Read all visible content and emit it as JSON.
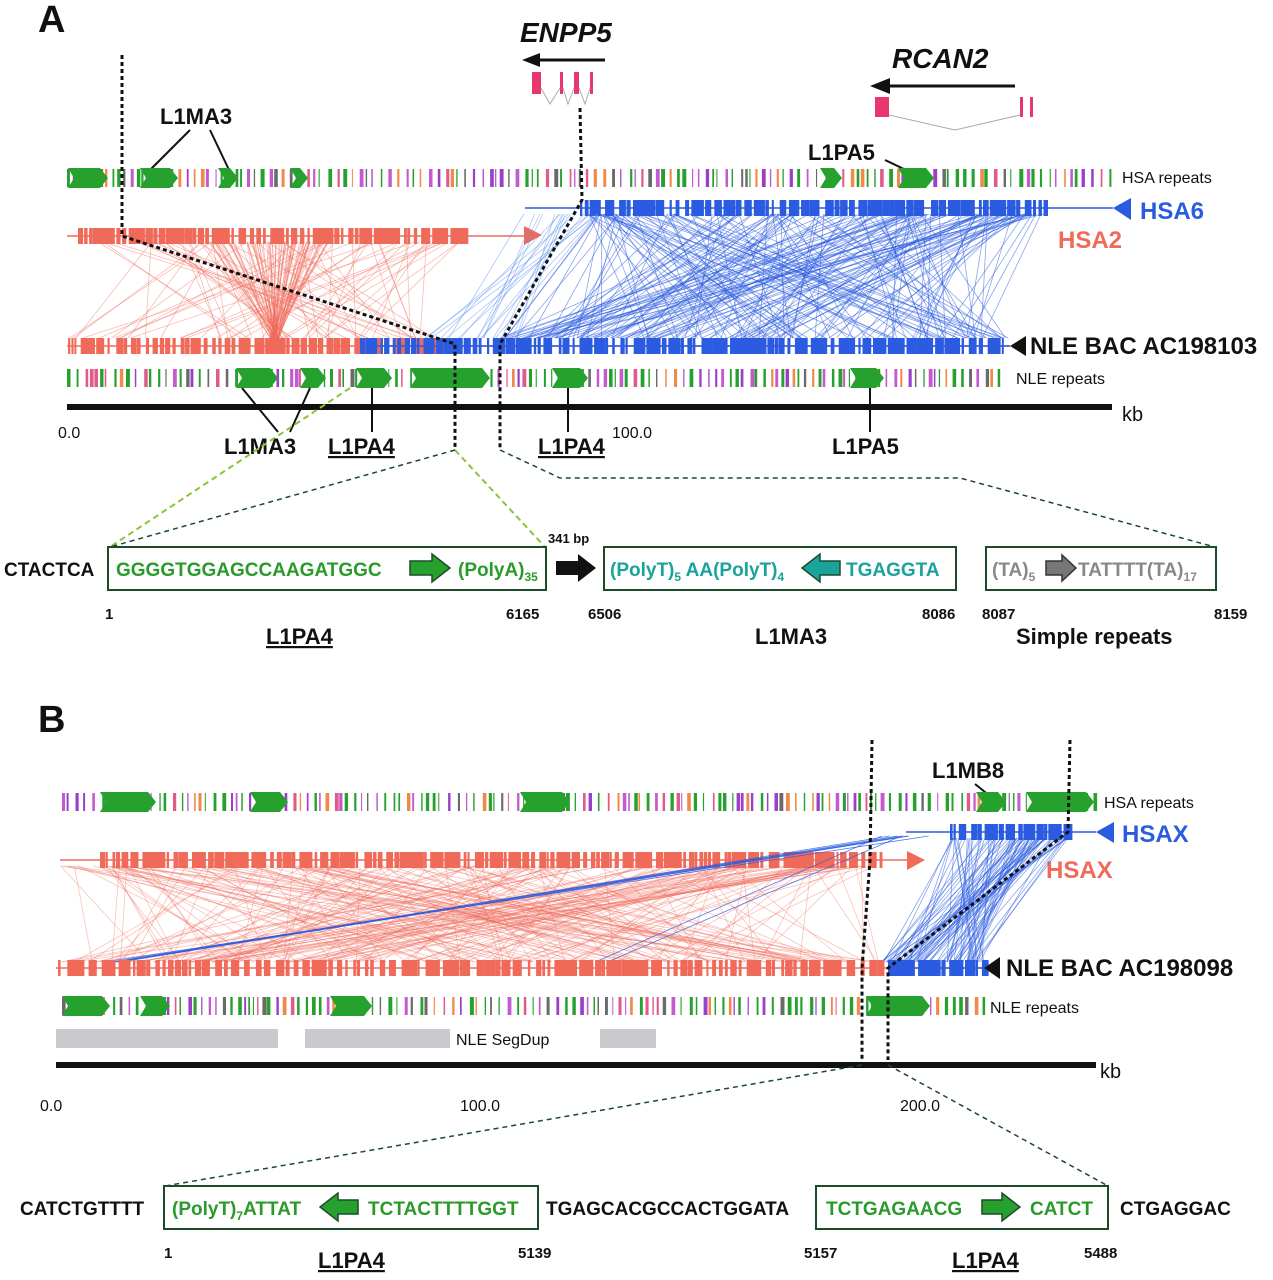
{
  "colors": {
    "human_blue": "#2a5be0",
    "human_red": "#f06a5a",
    "repeat_green": "#27a12e",
    "seq_green": "#2a9a2a",
    "seq_teal": "#1aa39a",
    "seq_gray": "#888888",
    "segdup_gray": "#c9cacd",
    "gene_pink": "#e9366f"
  },
  "panelA": {
    "label": "A",
    "genes": [
      "ENPP5",
      "RCAN2"
    ],
    "repeat_labels_top": [
      "L1MA3",
      "L1PA5"
    ],
    "tracks": {
      "hsa_repeats": "HSA repeats",
      "hsa6": "HSA6",
      "hsa2": "HSA2",
      "bac": "NLE BAC AC198103",
      "nle_repeats": "NLE repeats"
    },
    "axis": {
      "unit": "kb",
      "ticks": [
        "0.0",
        "100.0"
      ]
    },
    "repeat_labels_bottom": [
      "L1MA3",
      "L1PA4",
      "L1PA4",
      "L1PA5"
    ],
    "detail": {
      "left_flank": "CTACTCA",
      "box1": {
        "left": "GGGGTGGAGCCAAGATGGC",
        "right": "(PolyA)",
        "right_sub": "35",
        "start": "1",
        "end": "6165",
        "name": "L1PA4"
      },
      "gap": "341 bp",
      "box2": {
        "a": "(PolyT)",
        "a_sub": "5",
        "b": " AA(PolyT)",
        "b_sub": "4",
        "right": "TGAGGTA",
        "start": "6506",
        "end": "8086",
        "name": "L1MA3"
      },
      "box3": {
        "a": "(TA)",
        "a_sub": "5",
        "b": "TATTTT(TA)",
        "b_sub": "17",
        "start": "8087",
        "end": "8159",
        "name": "Simple repeats"
      }
    }
  },
  "panelB": {
    "label": "B",
    "repeat_labels_top": [
      "L1MB8"
    ],
    "tracks": {
      "hsa_repeats": "HSA repeats",
      "hsax_blue": "HSAX",
      "hsax_red": "HSAX",
      "bac": "NLE BAC AC198098",
      "nle_repeats": "NLE repeats",
      "segdup": "NLE SegDup"
    },
    "axis": {
      "unit": "kb",
      "ticks": [
        "0.0",
        "100.0",
        "200.0"
      ]
    },
    "detail": {
      "left_flank": "CATCTGTTTT",
      "box1": {
        "a": "(PolyT)",
        "a_sub": "7",
        "b": "ATTAT",
        "right": "TCTACTTTTGGT",
        "start": "1",
        "end": "5139",
        "name": "L1PA4"
      },
      "middle": "TGAGCACGCCACTGGATA",
      "box2": {
        "left": "TCTGAGAACG",
        "right": "CATCT",
        "start": "5157",
        "end": "5488",
        "name": "L1PA4"
      },
      "right_flank": "CTGAGGAC"
    }
  }
}
